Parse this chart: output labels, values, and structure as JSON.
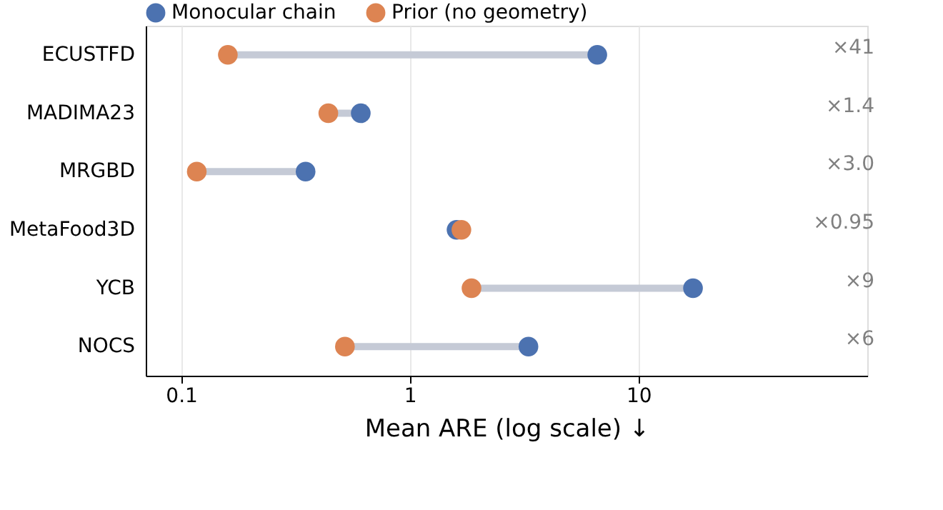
{
  "chart_data": {
    "type": "scatter",
    "xlabel": "Mean ARE (log scale)  ↓",
    "categories": [
      "ECUSTFD",
      "MADIMA23",
      "MRGBD",
      "MetaFood3D",
      "YCB",
      "NOCS"
    ],
    "series": [
      {
        "name": "Monocular chain",
        "color": "#4c72b0",
        "values": [
          6.6,
          0.61,
          0.35,
          1.6,
          17.3,
          3.3
        ]
      },
      {
        "name": "Prior (no geometry)",
        "color": "#dd8452",
        "values": [
          0.16,
          0.44,
          0.117,
          1.68,
          1.86,
          0.52
        ]
      }
    ],
    "orientation": "horizontal",
    "log": "x",
    "xlim": [
      0.07,
      100
    ],
    "xticks": [
      0.1,
      1,
      10
    ],
    "grid": "x",
    "legend": "top",
    "marker": "circle",
    "annotations": [
      "×41",
      "×1.4",
      "×3.0",
      "×0.95",
      "×9",
      "×6"
    ]
  }
}
